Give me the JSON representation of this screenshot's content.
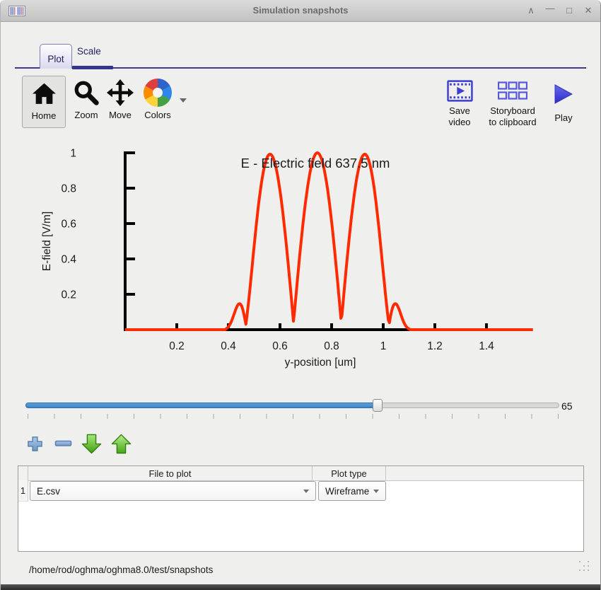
{
  "window": {
    "title": "Simulation snapshots",
    "controls": [
      {
        "name": "shade",
        "glyph": "∧"
      },
      {
        "name": "minimize",
        "glyph": "—"
      },
      {
        "name": "maximize",
        "glyph": "□"
      },
      {
        "name": "close",
        "glyph": "✕"
      }
    ]
  },
  "tabs": [
    {
      "label": "Plot",
      "selected": true
    },
    {
      "label": "Scale",
      "selected": false
    }
  ],
  "toolbar": {
    "left": [
      {
        "name": "home",
        "label": "Home",
        "active": true
      },
      {
        "name": "zoom",
        "label": "Zoom"
      },
      {
        "name": "move",
        "label": "Move"
      },
      {
        "name": "colors",
        "label": "Colors",
        "has_dropdown": true
      }
    ],
    "right": [
      {
        "name": "save-video",
        "label_lines": [
          "Save",
          "video"
        ]
      },
      {
        "name": "storyboard-to-clipboard",
        "label_lines": [
          "Storyboard",
          "to clipboard"
        ]
      },
      {
        "name": "play",
        "label_lines": [
          "Play"
        ]
      }
    ]
  },
  "chart_data": {
    "type": "line",
    "title": "E - Electric field 637.5 nm",
    "xlabel": "y-position [um]",
    "ylabel": "E-field [V/m]",
    "xlim": [
      0,
      1.58
    ],
    "ylim": [
      0,
      1.0
    ],
    "xticks": [
      0.2,
      0.4,
      0.6,
      0.8,
      1,
      1.2,
      1.4
    ],
    "xtick_labels": [
      "0.2",
      "0.4",
      "0.6",
      "0.8",
      "1",
      "1.2",
      "1.4"
    ],
    "yticks": [
      0.2,
      0.4,
      0.6,
      0.8,
      1
    ],
    "ytick_labels": [
      "0.2",
      "0.4",
      "0.6",
      "0.8",
      "1"
    ],
    "grid": false,
    "legend": false,
    "line_color": "#ff2a00",
    "line_width": 4,
    "series": [
      {
        "name": "E.csv",
        "peaks": [
          [
            0.56,
            1.0
          ],
          [
            0.745,
            1.0
          ],
          [
            0.93,
            1.0
          ]
        ],
        "valleys": [
          [
            0.6525,
            0.04
          ],
          [
            0.8375,
            0.04
          ]
        ],
        "flat_zero_regions": [
          [
            0,
            0.38
          ],
          [
            1.13,
            1.58
          ]
        ],
        "envelope": {
          "center": 0.745,
          "width": 0.3,
          "power": 10
        },
        "oscillation": {
          "zero_crossing": 0.4675,
          "period": 0.185,
          "floor": 0.04
        }
      }
    ]
  },
  "slider": {
    "value": "65",
    "min": 0,
    "max": 100,
    "fraction": 0.66,
    "tick_count": 21
  },
  "row_controls": [
    {
      "name": "add-row"
    },
    {
      "name": "remove-row"
    },
    {
      "name": "move-row-down"
    },
    {
      "name": "move-row-up"
    }
  ],
  "table": {
    "headers": {
      "index": "",
      "file": "File to plot",
      "plot_type": "Plot type"
    },
    "rows": [
      {
        "index": "1",
        "file": "E.csv",
        "plot_type": "Wireframe"
      }
    ]
  },
  "statusbar": {
    "path": "/home/rod/oghma/oghma8.0/test/snapshots"
  },
  "colors": {
    "accent_blue": "#3a3a97",
    "curve_red": "#ff2a00",
    "slider_blue": "#4493d4",
    "toolbar_icon_blue": "#3d3dd2",
    "green_arrow": "#3f9c12",
    "steel_blue_icon": "#8fb2da"
  }
}
